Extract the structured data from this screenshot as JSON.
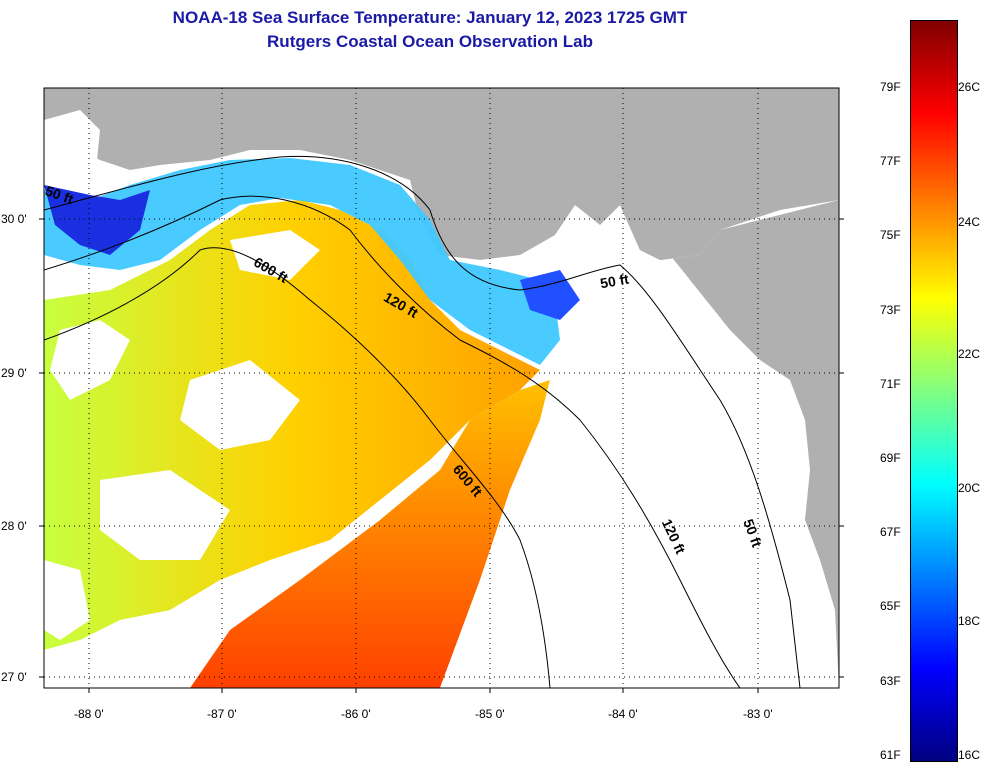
{
  "header": {
    "title": "NOAA-18 Sea Surface Temperature:  January 12, 2023 1725 GMT",
    "subtitle": "Rutgers Coastal Ocean Observation Lab"
  },
  "axes": {
    "lon_ticks": [
      "-88 0'",
      "-87 0'",
      "-86 0'",
      "-85 0'",
      "-84 0'",
      "-83 0'"
    ],
    "lat_ticks": [
      "30 0'",
      "29 0'",
      "28 0'",
      "27 0'"
    ]
  },
  "contours": {
    "label_50ft_west": "50 ft",
    "label_50ft_east": "50 ft",
    "label_50ft_south": "50 ft",
    "label_120ft_north": "120 ft",
    "label_120ft_south": "120 ft",
    "label_600ft_north": "600 ft",
    "label_600ft_south": "600 ft"
  },
  "colorbar": {
    "f_labels": [
      "79F",
      "77F",
      "75F",
      "73F",
      "71F",
      "69F",
      "67F",
      "65F",
      "63F",
      "61F"
    ],
    "c_labels": [
      "26C",
      "24C",
      "22C",
      "20C",
      "18C",
      "16C"
    ],
    "colors": [
      "#800000",
      "#ff0000",
      "#ff8000",
      "#ffff00",
      "#80ff80",
      "#00ffff",
      "#0080ff",
      "#0000ff",
      "#000080"
    ]
  },
  "colors": {
    "land": "#b0b0b0",
    "no_data": "#ffffff",
    "title": "#1a1aa6"
  }
}
